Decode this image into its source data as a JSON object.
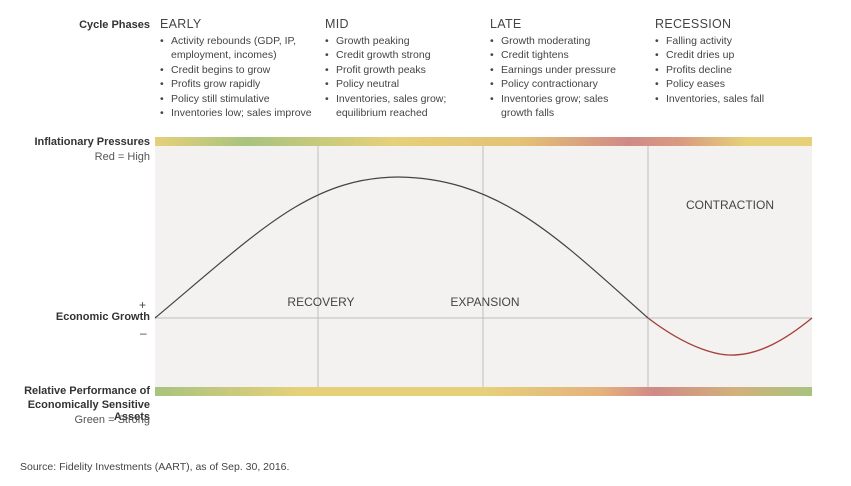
{
  "labels": {
    "cycle_phases": "Cycle Phases",
    "inflationary_pressures": "Inflationary Pressures",
    "inflation_scale": "Red = High",
    "economic_growth": "Economic Growth",
    "plus": "+",
    "minus": "–",
    "relative_performance_1": "Relative Performance of",
    "relative_performance_2": "Economically Sensitive Assets",
    "performance_scale": "Green = Strong"
  },
  "phases": [
    {
      "name": "EARLY",
      "bullets": [
        "Activity rebounds (GDP, IP, employment, incomes)",
        "Credit begins to grow",
        "Profits grow rapidly",
        "Policy still stimulative",
        "Inventories low; sales improve"
      ]
    },
    {
      "name": "MID",
      "bullets": [
        "Growth peaking",
        "Credit growth strong",
        "Profit growth peaks",
        "Policy neutral",
        "Inventories, sales grow; equilibrium reached"
      ]
    },
    {
      "name": "LATE",
      "bullets": [
        "Growth moderating",
        "Credit tightens",
        "Earnings under pressure",
        "Policy contractionary",
        "Inventories grow; sales growth falls"
      ]
    },
    {
      "name": "RECESSION",
      "bullets": [
        "Falling activity",
        "Credit dries up",
        "Profits decline",
        "Policy eases",
        "Inventories, sales fall"
      ]
    }
  ],
  "diagram": {
    "region_labels": {
      "recovery": "RECOVERY",
      "expansion": "EXPANSION",
      "contraction": "CONTRACTION"
    },
    "colors": {
      "green": "#a8c37e",
      "yellow": "#e6d07a",
      "red": "#cf8a86",
      "expansion_curve": "#444444",
      "contraction_curve": "#a5413a",
      "panel_bg": "#f4f2f0",
      "grid_line": "#bdbdbd"
    }
  },
  "source": "Source: Fidelity Investments (AART), as of Sep. 30, 2016."
}
